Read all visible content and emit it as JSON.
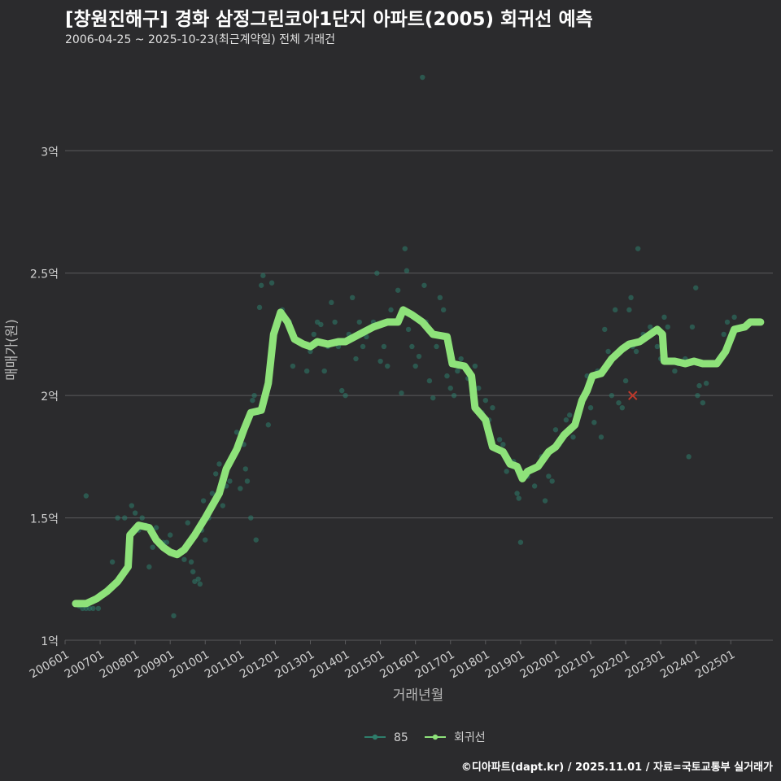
{
  "header": {
    "title": "[창원진해구] 경화 삼정그린코아1단지 아파트(2005) 회귀선 예측",
    "subtitle": "2006-04-25 ~ 2025-10-23(최근계약일) 전체 거래건"
  },
  "caption": "©디아파트(dapt.kr) / 2025.11.01 / 자료=국토교통부 실거래가",
  "colors": {
    "background": "#2b2b2d",
    "grid": "#5a5a5c",
    "regression": "#8ee27a",
    "scatter": "#2e7d6b",
    "marker": "#c0392b",
    "text": "#cfcfcf"
  },
  "chart_data": {
    "type": "scatter",
    "title": "[창원진해구] 경화 삼정그린코아1단지 아파트(2005) 회귀선 예측",
    "xlabel": "거래년월",
    "ylabel": "매매가(원)",
    "xlim": [
      2006.0,
      2026.2
    ],
    "ylim": [
      1.0,
      3.35
    ],
    "y_ticks": [
      {
        "value": 1.0,
        "label": "1억"
      },
      {
        "value": 1.5,
        "label": "1.5억"
      },
      {
        "value": 2.0,
        "label": "2억"
      },
      {
        "value": 2.5,
        "label": "2.5억"
      },
      {
        "value": 3.0,
        "label": "3억"
      }
    ],
    "x_ticks": [
      {
        "value": 2006.0,
        "label": "200601"
      },
      {
        "value": 2007.0,
        "label": "200701"
      },
      {
        "value": 2008.0,
        "label": "200801"
      },
      {
        "value": 2009.0,
        "label": "200901"
      },
      {
        "value": 2010.0,
        "label": "201001"
      },
      {
        "value": 2011.0,
        "label": "201101"
      },
      {
        "value": 2012.0,
        "label": "201201"
      },
      {
        "value": 2013.0,
        "label": "201301"
      },
      {
        "value": 2014.0,
        "label": "201401"
      },
      {
        "value": 2015.0,
        "label": "201501"
      },
      {
        "value": 2016.0,
        "label": "201601"
      },
      {
        "value": 2017.0,
        "label": "201701"
      },
      {
        "value": 2018.0,
        "label": "201801"
      },
      {
        "value": 2019.0,
        "label": "201901"
      },
      {
        "value": 2020.0,
        "label": "202001"
      },
      {
        "value": 2021.0,
        "label": "202101"
      },
      {
        "value": 2022.0,
        "label": "202201"
      },
      {
        "value": 2023.0,
        "label": "202301"
      },
      {
        "value": 2024.0,
        "label": "202401"
      },
      {
        "value": 2025.0,
        "label": "202501"
      }
    ],
    "legend": {
      "placement": "bottom",
      "entries": [
        {
          "label": "85",
          "kind": "scatter"
        },
        {
          "label": "회귀선",
          "kind": "line"
        }
      ]
    },
    "series": [
      {
        "name": "85",
        "kind": "scatter",
        "points": [
          [
            2006.3,
            1.15
          ],
          [
            2006.4,
            1.14
          ],
          [
            2006.5,
            1.13
          ],
          [
            2006.6,
            1.13
          ],
          [
            2006.7,
            1.13
          ],
          [
            2006.8,
            1.13
          ],
          [
            2006.6,
            1.59
          ],
          [
            2006.95,
            1.13
          ],
          [
            2007.2,
            1.2
          ],
          [
            2007.35,
            1.32
          ],
          [
            2007.5,
            1.5
          ],
          [
            2007.7,
            1.5
          ],
          [
            2007.9,
            1.55
          ],
          [
            2008.0,
            1.52
          ],
          [
            2008.1,
            1.45
          ],
          [
            2008.2,
            1.5
          ],
          [
            2008.3,
            1.47
          ],
          [
            2008.4,
            1.3
          ],
          [
            2008.5,
            1.38
          ],
          [
            2008.6,
            1.46
          ],
          [
            2008.8,
            1.4
          ],
          [
            2008.9,
            1.4
          ],
          [
            2009.0,
            1.43
          ],
          [
            2009.1,
            1.1
          ],
          [
            2009.2,
            1.35
          ],
          [
            2009.4,
            1.33
          ],
          [
            2009.5,
            1.48
          ],
          [
            2009.6,
            1.32
          ],
          [
            2009.65,
            1.28
          ],
          [
            2009.7,
            1.24
          ],
          [
            2009.8,
            1.25
          ],
          [
            2009.85,
            1.23
          ],
          [
            2009.9,
            1.45
          ],
          [
            2009.95,
            1.57
          ],
          [
            2010.0,
            1.41
          ],
          [
            2010.1,
            1.5
          ],
          [
            2010.2,
            1.6
          ],
          [
            2010.3,
            1.68
          ],
          [
            2010.4,
            1.72
          ],
          [
            2010.5,
            1.55
          ],
          [
            2010.6,
            1.63
          ],
          [
            2010.7,
            1.65
          ],
          [
            2010.8,
            1.75
          ],
          [
            2010.9,
            1.85
          ],
          [
            2011.0,
            1.62
          ],
          [
            2011.1,
            1.8
          ],
          [
            2011.15,
            1.7
          ],
          [
            2011.2,
            1.65
          ],
          [
            2011.3,
            1.5
          ],
          [
            2011.35,
            1.98
          ],
          [
            2011.4,
            2.0
          ],
          [
            2011.45,
            1.41
          ],
          [
            2011.5,
            1.93
          ],
          [
            2011.55,
            2.36
          ],
          [
            2011.6,
            2.45
          ],
          [
            2011.65,
            2.49
          ],
          [
            2011.7,
            2.0
          ],
          [
            2011.8,
            1.88
          ],
          [
            2011.9,
            2.46
          ],
          [
            2012.0,
            2.28
          ],
          [
            2012.1,
            2.32
          ],
          [
            2012.2,
            2.35
          ],
          [
            2012.4,
            2.3
          ],
          [
            2012.5,
            2.12
          ],
          [
            2012.7,
            2.22
          ],
          [
            2012.9,
            2.1
          ],
          [
            2013.0,
            2.18
          ],
          [
            2013.1,
            2.25
          ],
          [
            2013.2,
            2.3
          ],
          [
            2013.3,
            2.29
          ],
          [
            2013.4,
            2.1
          ],
          [
            2013.5,
            2.2
          ],
          [
            2013.6,
            2.38
          ],
          [
            2013.7,
            2.3
          ],
          [
            2013.8,
            2.2
          ],
          [
            2013.9,
            2.02
          ],
          [
            2014.0,
            2.0
          ],
          [
            2014.1,
            2.25
          ],
          [
            2014.2,
            2.4
          ],
          [
            2014.3,
            2.15
          ],
          [
            2014.4,
            2.3
          ],
          [
            2014.5,
            2.2
          ],
          [
            2014.6,
            2.24
          ],
          [
            2014.8,
            2.3
          ],
          [
            2014.9,
            2.5
          ],
          [
            2015.0,
            2.14
          ],
          [
            2015.1,
            2.2
          ],
          [
            2015.2,
            2.12
          ],
          [
            2015.3,
            2.35
          ],
          [
            2015.4,
            2.3
          ],
          [
            2015.5,
            2.43
          ],
          [
            2015.6,
            2.01
          ],
          [
            2015.7,
            2.6
          ],
          [
            2015.75,
            2.51
          ],
          [
            2015.8,
            2.27
          ],
          [
            2015.9,
            2.2
          ],
          [
            2016.0,
            2.12
          ],
          [
            2016.1,
            2.16
          ],
          [
            2016.2,
            3.3
          ],
          [
            2016.25,
            2.45
          ],
          [
            2016.3,
            2.3
          ],
          [
            2016.4,
            2.06
          ],
          [
            2016.5,
            1.99
          ],
          [
            2016.6,
            2.2
          ],
          [
            2016.7,
            2.4
          ],
          [
            2016.8,
            2.35
          ],
          [
            2016.9,
            2.08
          ],
          [
            2017.0,
            2.03
          ],
          [
            2017.1,
            2.0
          ],
          [
            2017.2,
            2.1
          ],
          [
            2017.3,
            2.15
          ],
          [
            2017.5,
            2.07
          ],
          [
            2017.7,
            2.12
          ],
          [
            2017.8,
            2.03
          ],
          [
            2017.9,
            1.93
          ],
          [
            2018.0,
            1.98
          ],
          [
            2018.1,
            1.9
          ],
          [
            2018.2,
            1.95
          ],
          [
            2018.4,
            1.82
          ],
          [
            2018.5,
            1.8
          ],
          [
            2018.6,
            1.69
          ],
          [
            2018.7,
            1.72
          ],
          [
            2018.8,
            1.73
          ],
          [
            2018.9,
            1.6
          ],
          [
            2018.95,
            1.58
          ],
          [
            2019.0,
            1.4
          ],
          [
            2019.1,
            1.68
          ],
          [
            2019.2,
            1.67
          ],
          [
            2019.3,
            1.7
          ],
          [
            2019.4,
            1.63
          ],
          [
            2019.6,
            1.75
          ],
          [
            2019.7,
            1.57
          ],
          [
            2019.8,
            1.67
          ],
          [
            2019.9,
            1.65
          ],
          [
            2020.0,
            1.86
          ],
          [
            2020.1,
            1.8
          ],
          [
            2020.2,
            1.84
          ],
          [
            2020.3,
            1.9
          ],
          [
            2020.4,
            1.92
          ],
          [
            2020.5,
            1.83
          ],
          [
            2020.7,
            1.95
          ],
          [
            2020.8,
            1.99
          ],
          [
            2020.9,
            2.08
          ],
          [
            2021.0,
            1.95
          ],
          [
            2021.1,
            1.89
          ],
          [
            2021.2,
            2.1
          ],
          [
            2021.3,
            1.83
          ],
          [
            2021.4,
            2.27
          ],
          [
            2021.5,
            2.18
          ],
          [
            2021.6,
            2.0
          ],
          [
            2021.7,
            2.35
          ],
          [
            2021.8,
            1.97
          ],
          [
            2021.9,
            1.95
          ],
          [
            2022.0,
            2.06
          ],
          [
            2022.1,
            2.35
          ],
          [
            2022.15,
            2.4
          ],
          [
            2022.2,
            2.2
          ],
          [
            2022.3,
            2.18
          ],
          [
            2022.35,
            2.6
          ],
          [
            2022.5,
            2.25
          ],
          [
            2022.7,
            2.28
          ],
          [
            2022.9,
            2.2
          ],
          [
            2023.0,
            2.15
          ],
          [
            2023.1,
            2.32
          ],
          [
            2023.2,
            2.28
          ],
          [
            2023.4,
            2.1
          ],
          [
            2023.5,
            2.13
          ],
          [
            2023.7,
            2.15
          ],
          [
            2023.8,
            1.75
          ],
          [
            2023.9,
            2.28
          ],
          [
            2024.0,
            2.44
          ],
          [
            2024.05,
            2.0
          ],
          [
            2024.1,
            2.04
          ],
          [
            2024.2,
            1.97
          ],
          [
            2024.3,
            2.05
          ],
          [
            2024.5,
            2.13
          ],
          [
            2024.8,
            2.25
          ],
          [
            2024.9,
            2.3
          ],
          [
            2025.1,
            2.32
          ],
          [
            2025.3,
            2.28
          ],
          [
            2025.6,
            2.3
          ]
        ]
      },
      {
        "name": "회귀선",
        "kind": "line",
        "points": [
          [
            2006.3,
            1.15
          ],
          [
            2006.6,
            1.15
          ],
          [
            2006.9,
            1.17
          ],
          [
            2007.2,
            1.2
          ],
          [
            2007.5,
            1.24
          ],
          [
            2007.8,
            1.3
          ],
          [
            2007.85,
            1.43
          ],
          [
            2008.1,
            1.47
          ],
          [
            2008.4,
            1.46
          ],
          [
            2008.6,
            1.41
          ],
          [
            2008.8,
            1.38
          ],
          [
            2009.0,
            1.36
          ],
          [
            2009.2,
            1.35
          ],
          [
            2009.4,
            1.37
          ],
          [
            2009.7,
            1.43
          ],
          [
            2010.0,
            1.5
          ],
          [
            2010.4,
            1.6
          ],
          [
            2010.6,
            1.7
          ],
          [
            2010.9,
            1.78
          ],
          [
            2011.1,
            1.86
          ],
          [
            2011.3,
            1.93
          ],
          [
            2011.6,
            1.94
          ],
          [
            2011.8,
            2.05
          ],
          [
            2011.95,
            2.25
          ],
          [
            2012.15,
            2.34
          ],
          [
            2012.35,
            2.3
          ],
          [
            2012.55,
            2.23
          ],
          [
            2012.8,
            2.21
          ],
          [
            2013.0,
            2.2
          ],
          [
            2013.2,
            2.22
          ],
          [
            2013.5,
            2.21
          ],
          [
            2013.8,
            2.22
          ],
          [
            2014.0,
            2.22
          ],
          [
            2014.4,
            2.25
          ],
          [
            2014.8,
            2.28
          ],
          [
            2015.2,
            2.3
          ],
          [
            2015.5,
            2.3
          ],
          [
            2015.65,
            2.35
          ],
          [
            2015.9,
            2.33
          ],
          [
            2016.2,
            2.3
          ],
          [
            2016.5,
            2.25
          ],
          [
            2016.9,
            2.24
          ],
          [
            2017.05,
            2.13
          ],
          [
            2017.4,
            2.12
          ],
          [
            2017.6,
            2.08
          ],
          [
            2017.7,
            1.95
          ],
          [
            2018.0,
            1.9
          ],
          [
            2018.2,
            1.79
          ],
          [
            2018.5,
            1.77
          ],
          [
            2018.7,
            1.72
          ],
          [
            2018.9,
            1.71
          ],
          [
            2019.05,
            1.66
          ],
          [
            2019.2,
            1.69
          ],
          [
            2019.5,
            1.71
          ],
          [
            2019.8,
            1.77
          ],
          [
            2020.0,
            1.79
          ],
          [
            2020.25,
            1.84
          ],
          [
            2020.55,
            1.88
          ],
          [
            2020.75,
            1.98
          ],
          [
            2020.9,
            2.02
          ],
          [
            2021.05,
            2.08
          ],
          [
            2021.3,
            2.09
          ],
          [
            2021.6,
            2.15
          ],
          [
            2021.9,
            2.19
          ],
          [
            2022.1,
            2.21
          ],
          [
            2022.4,
            2.22
          ],
          [
            2022.7,
            2.25
          ],
          [
            2022.9,
            2.27
          ],
          [
            2023.05,
            2.25
          ],
          [
            2023.1,
            2.14
          ],
          [
            2023.4,
            2.14
          ],
          [
            2023.7,
            2.13
          ],
          [
            2023.95,
            2.14
          ],
          [
            2024.2,
            2.13
          ],
          [
            2024.6,
            2.13
          ],
          [
            2024.85,
            2.18
          ],
          [
            2025.1,
            2.27
          ],
          [
            2025.4,
            2.28
          ],
          [
            2025.55,
            2.3
          ],
          [
            2025.85,
            2.3
          ]
        ]
      },
      {
        "name": "marker",
        "kind": "cross",
        "points": [
          [
            2022.2,
            2.0
          ]
        ]
      }
    ]
  }
}
